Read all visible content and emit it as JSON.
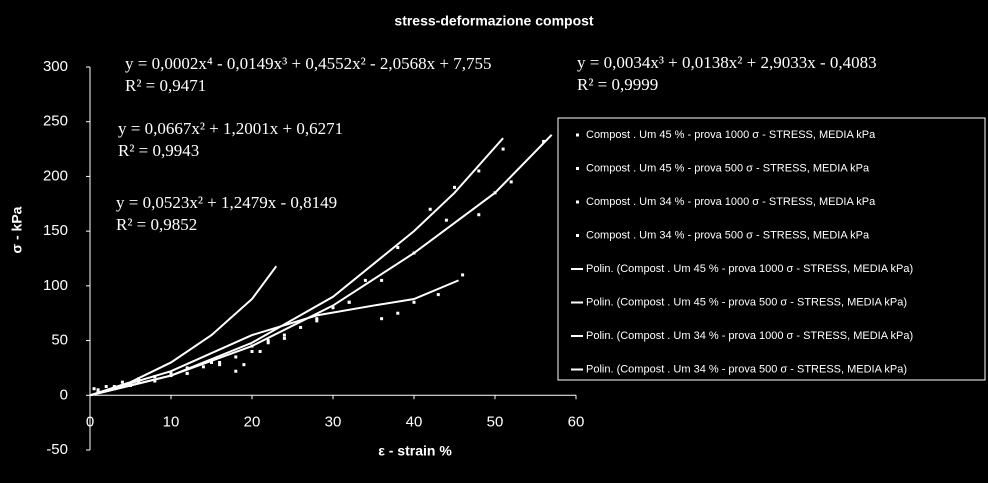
{
  "chart_data": {
    "type": "scatter",
    "title": "stress-deformazione compost",
    "x_label": "ε - strain %",
    "y_label": "σ - kPa",
    "xlim": [
      0,
      60
    ],
    "xticks": [
      0,
      10,
      20,
      30,
      40,
      50,
      60
    ],
    "ylim": [
      -50,
      300
    ],
    "yticks": [
      -50,
      0,
      50,
      100,
      150,
      200,
      250,
      300
    ],
    "grid": false,
    "legend": "right",
    "annotations": [
      "y = 0,0002x⁴ - 0,0149x³ + 0,4552x² - 2,0568x + 7,755",
      "R² = 0,9471",
      "y = 0,0667x² + 1,2001x + 0,6271",
      "R² = 0,9943",
      "y = 0,0523x² + 1,2479x - 0,8149",
      "R² = 0,9852",
      "y = 0,0034x³ + 0,0138x² + 2,9033x - 0,4083",
      "R² = 0,9999"
    ],
    "series": [
      {
        "name": "Compost . Um 45 % - prova 1000 σ - STRESS, MEDIA kPa",
        "color": "#ffffff",
        "mode": "markers",
        "x": [
          1,
          3,
          5,
          8,
          12,
          16,
          20,
          24,
          28,
          32,
          36,
          40,
          44,
          48,
          50,
          52,
          56
        ],
        "values": [
          3,
          6,
          9,
          13,
          20,
          28,
          40,
          52,
          68,
          85,
          105,
          130,
          160,
          165,
          185,
          195,
          232
        ]
      },
      {
        "name": "Compost . Um 45 % - prova 500 σ - STRESS, MEDIA kPa",
        "color": "#ffffff",
        "mode": "markers",
        "x": [
          1,
          3,
          6,
          10,
          14,
          18,
          22,
          26,
          30,
          34,
          38,
          42,
          45,
          48,
          51
        ],
        "values": [
          4,
          8,
          12,
          18,
          26,
          35,
          48,
          62,
          80,
          105,
          135,
          170,
          190,
          205,
          225
        ]
      },
      {
        "name": "Compost . Um 34 % - prova 1000 σ - STRESS, MEDIA kPa",
        "color": "#ffffff",
        "mode": "markers",
        "x": [
          1,
          4,
          8,
          12,
          16,
          20,
          24,
          28,
          32,
          36,
          38,
          40,
          43,
          46
        ],
        "values": [
          5,
          9,
          14,
          20,
          30,
          45,
          55,
          70,
          85,
          70,
          75,
          85,
          92,
          110
        ]
      },
      {
        "name": "Compost . Um 34 % - prova 500 σ - STRESS, MEDIA kPa",
        "color": "#ffffff",
        "mode": "markers",
        "x": [
          0.5,
          2,
          4,
          6,
          8,
          10,
          12,
          15,
          18,
          19,
          21,
          22
        ],
        "values": [
          6,
          8,
          12,
          15,
          17,
          20,
          25,
          30,
          22,
          28,
          40,
          50
        ]
      },
      {
        "name": "Polin. (Compost . Um 45 % - prova 1000 σ - STRESS, MEDIA kPa)",
        "color": "#ffffff",
        "mode": "line",
        "x": [
          0,
          10,
          20,
          30,
          40,
          50,
          57
        ],
        "values": [
          0,
          18,
          45,
          82,
          130,
          185,
          238
        ]
      },
      {
        "name": "Polin. (Compost . Um 45 % - prova 500 σ - STRESS, MEDIA kPa)",
        "color": "#ffffff",
        "mode": "line",
        "x": [
          0,
          10,
          20,
          30,
          40,
          45,
          51
        ],
        "values": [
          0,
          18,
          48,
          90,
          150,
          185,
          235
        ]
      },
      {
        "name": "Polin. (Compost . Um 34 % - prova 1000 σ - STRESS, MEDIA kPa)",
        "color": "#ffffff",
        "mode": "line",
        "x": [
          0,
          10,
          20,
          28,
          35,
          40,
          45.5
        ],
        "values": [
          0,
          22,
          55,
          73,
          82,
          88,
          105
        ]
      },
      {
        "name": "Polin. (Compost . Um 34 % - prova 500 σ - STRESS, MEDIA kPa)",
        "color": "#ffffff",
        "mode": "line",
        "x": [
          0,
          5,
          10,
          15,
          20,
          23
        ],
        "values": [
          0,
          12,
          30,
          55,
          88,
          118
        ]
      }
    ]
  }
}
